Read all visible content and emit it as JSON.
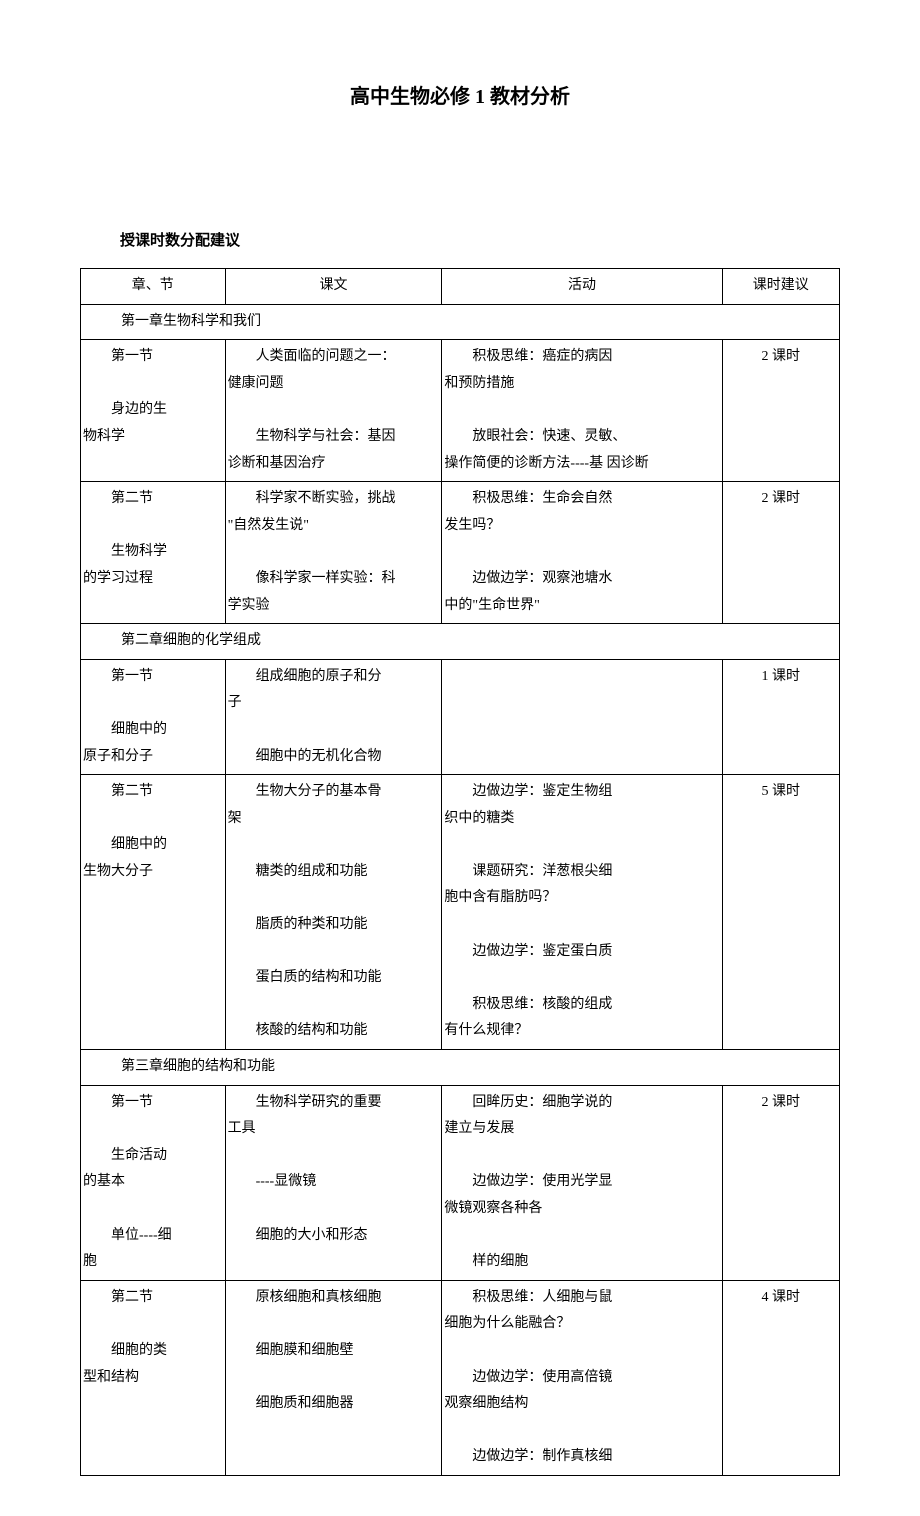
{
  "title": "高中生物必修 1 教材分析",
  "subtitle": "授课时数分配建议",
  "headers": {
    "c1": "章、节",
    "c2": "课文",
    "c3": "活动",
    "c4": "课时建议"
  },
  "chapters": {
    "ch1": "第一章生物科学和我们",
    "ch2": "第二章细胞的化学组成",
    "ch3": "第三章细胞的结构和功能"
  },
  "rows": {
    "r1_sec_l1": "第一节",
    "r1_sec_l2": "身边的生",
    "r1_sec_l3": "物科学",
    "r1_lesson_l1": "人类面临的问题之一：",
    "r1_lesson_l2": "健康问题",
    "r1_lesson_l3": "生物科学与社会：基因",
    "r1_lesson_l4": "诊断和基因治疗",
    "r1_act_l1": "积极思维：癌症的病因",
    "r1_act_l2": "和预防措施",
    "r1_act_l3": "放眼社会：快速、灵敏、",
    "r1_act_l4": "操作简便的诊断方法----基",
    "r1_act_l5": "因诊断",
    "r1_hours": "2 课时",
    "r2_sec_l1": "第二节",
    "r2_sec_l2": "生物科学",
    "r2_sec_l3": "的学习过程",
    "r2_lesson_l1": "科学家不断实验，挑战",
    "r2_lesson_l2": "\"自然发生说\"",
    "r2_lesson_l3": "像科学家一样实验：科",
    "r2_lesson_l4": "学实验",
    "r2_act_l1": "积极思维：生命会自然",
    "r2_act_l2": "发生吗？",
    "r2_act_l3": "边做边学：观察池塘水",
    "r2_act_l4": "中的\"生命世界\"",
    "r2_hours": "2 课时",
    "r3_sec_l1": "第一节",
    "r3_sec_l2": "细胞中的",
    "r3_sec_l3": "原子和分子",
    "r3_lesson_l1": "组成细胞的原子和分",
    "r3_lesson_l2": "子",
    "r3_lesson_l3": "细胞中的无机化合物",
    "r3_hours": "1 课时",
    "r4_sec_l1": "第二节",
    "r4_sec_l2": "细胞中的",
    "r4_sec_l3": "生物大分子",
    "r4_lesson_l1": "生物大分子的基本骨",
    "r4_lesson_l2": "架",
    "r4_lesson_l3": "糖类的组成和功能",
    "r4_lesson_l4": "脂质的种类和功能",
    "r4_lesson_l5": "蛋白质的结构和功能",
    "r4_lesson_l6": "核酸的结构和功能",
    "r4_act_l1": "边做边学：鉴定生物组",
    "r4_act_l2": "织中的糖类",
    "r4_act_l3": "课题研究：洋葱根尖细",
    "r4_act_l4": "胞中含有脂肪吗？",
    "r4_act_l5": "边做边学：鉴定蛋白质",
    "r4_act_l6": "积极思维：核酸的组成",
    "r4_act_l7": "有什么规律？",
    "r4_hours": "5 课时",
    "r5_sec_l1": "第一节",
    "r5_sec_l2": "生命活动",
    "r5_sec_l3": "的基本",
    "r5_sec_l4": "单位----细",
    "r5_sec_l5": "胞",
    "r5_lesson_l1": "生物科学研究的重要",
    "r5_lesson_l2": "工具",
    "r5_lesson_l3": "----显微镜",
    "r5_lesson_l4": "细胞的大小和形态",
    "r5_act_l1": "回眸历史：细胞学说的",
    "r5_act_l2": "建立与发展",
    "r5_act_l3": "边做边学：使用光学显",
    "r5_act_l4": "微镜观察各种各",
    "r5_act_l5": "样的细胞",
    "r5_hours": "2 课时",
    "r6_sec_l1": "第二节",
    "r6_sec_l2": "细胞的类",
    "r6_sec_l3": "型和结构",
    "r6_lesson_l1": "原核细胞和真核细胞",
    "r6_lesson_l2": "细胞膜和细胞壁",
    "r6_lesson_l3": "细胞质和细胞器",
    "r6_act_l1": "积极思维：人细胞与鼠",
    "r6_act_l2": "细胞为什么能融合？",
    "r6_act_l3": "边做边学：使用高倍镜",
    "r6_act_l4": "观察细胞结构",
    "r6_act_l5": "边做边学：制作真核细",
    "r6_hours": "4 课时"
  }
}
